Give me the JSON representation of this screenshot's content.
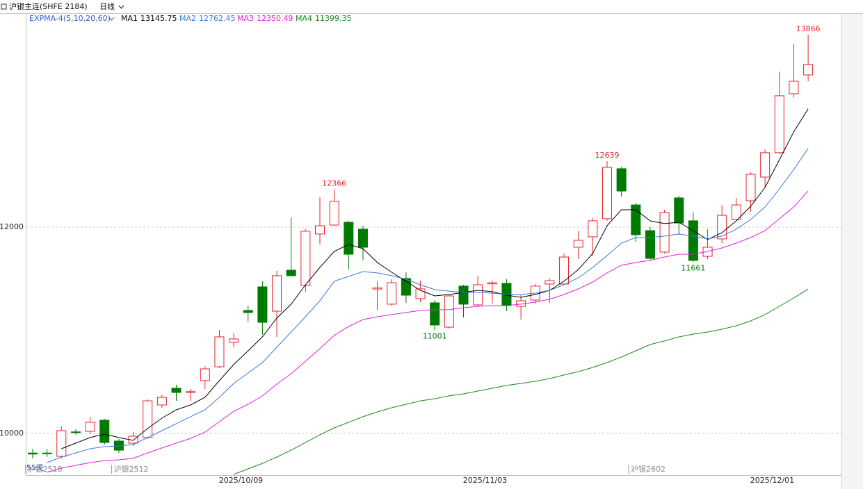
{
  "chart_data": {
    "type": "candlestick",
    "title": "沪银主连(SHFE 2184)",
    "period": "日线",
    "indicator": "EXPMA-4(5,10,20,60)",
    "days_label": "55天",
    "up_color": "#e8232a",
    "down_color": "#007a00",
    "categories": [
      null,
      null,
      null,
      null,
      null,
      null,
      null,
      null,
      null,
      null,
      null,
      null,
      null,
      null,
      null,
      "2025/10/09",
      null,
      null,
      null,
      null,
      null,
      null,
      null,
      null,
      null,
      null,
      null,
      null,
      null,
      null,
      null,
      null,
      "2025/11/03",
      null,
      null,
      null,
      null,
      null,
      null,
      null,
      null,
      null,
      null,
      null,
      null,
      null,
      null,
      null,
      null,
      null,
      null,
      null,
      "2025/12/01",
      null,
      null
    ],
    "contracts": [
      "沪银2510",
      null,
      null,
      null,
      null,
      null,
      "沪银2512",
      null,
      null,
      null,
      null,
      null,
      null,
      null,
      null,
      null,
      null,
      null,
      null,
      null,
      null,
      null,
      null,
      null,
      null,
      null,
      null,
      null,
      null,
      null,
      null,
      null,
      null,
      null,
      null,
      null,
      null,
      null,
      null,
      null,
      null,
      null,
      "沪银2602",
      null,
      null,
      null,
      null,
      null,
      null,
      null,
      null,
      null,
      null,
      null,
      null
    ],
    "open": [
      9810,
      9810,
      9778,
      10015,
      10020,
      10128,
      9926,
      9906,
      9960,
      10276,
      10438,
      10400,
      10512,
      10646,
      10882,
      11192,
      11421,
      11185,
      11582,
      11434,
      11933,
      12020,
      12047,
      11980,
      11400,
      11253,
      11502,
      11306,
      11266,
      11030,
      11428,
      11246,
      11450,
      11455,
      11232,
      11293,
      11448,
      11448,
      11805,
      11906,
      12081,
      12566,
      12215,
      11966,
      11758,
      12283,
      12061,
      11717,
      11886,
      12074,
      12256,
      12485,
      12721,
      13293,
      13475
    ],
    "close": [
      9800,
      9805,
      10027,
      10010,
      10108,
      9912,
      9838,
      9973,
      10316,
      10350,
      10397,
      10405,
      10626,
      10936,
      10916,
      11172,
      11077,
      11529,
      11529,
      11960,
      12013,
      12249,
      11737,
      11805,
      11410,
      11461,
      11340,
      11401,
      11051,
      11333,
      11253,
      11441,
      11460,
      11239,
      11286,
      11428,
      11481,
      11710,
      11872,
      12061,
      12579,
      12350,
      11926,
      11697,
      12141,
      12040,
      11677,
      11805,
      12114,
      12215,
      12512,
      12721,
      13273,
      13414,
      13576
    ],
    "high": [
      9852,
      9850,
      10067,
      10040,
      10162,
      10141,
      9946,
      10013,
      10330,
      10377,
      10471,
      10431,
      10653,
      11003,
      10970,
      11239,
      11475,
      11576,
      12094,
      11980,
      12289,
      12366,
      12061,
      12013,
      11475,
      11495,
      11562,
      11482,
      11293,
      11347,
      11441,
      11529,
      11482,
      11495,
      11340,
      11448,
      11502,
      11744,
      11960,
      12087,
      12639,
      12586,
      12236,
      12000,
      12168,
      12303,
      12141,
      11980,
      12215,
      12283,
      12532,
      12754,
      13508,
      13778,
      13866
    ],
    "low": [
      9758,
      9770,
      9758,
      9990,
      9993,
      9892,
      9811,
      9879,
      9946,
      10249,
      10316,
      10316,
      10431,
      10633,
      10835,
      11084,
      10956,
      10936,
      11522,
      11374,
      11832,
      12013,
      11589,
      11677,
      11199,
      11239,
      11266,
      11273,
      11001,
      11017,
      11125,
      11226,
      11259,
      11185,
      11104,
      11259,
      11266,
      11441,
      11690,
      11724,
      12061,
      12296,
      11859,
      11677,
      11744,
      11926,
      11661,
      11690,
      11845,
      12061,
      12148,
      12384,
      12707,
      13259,
      13414
    ],
    "high_labels": [
      null,
      null,
      null,
      null,
      null,
      null,
      null,
      null,
      null,
      null,
      null,
      null,
      null,
      null,
      null,
      null,
      null,
      null,
      null,
      null,
      null,
      "12366",
      null,
      null,
      null,
      null,
      null,
      null,
      null,
      null,
      null,
      null,
      null,
      null,
      null,
      null,
      null,
      null,
      null,
      null,
      "12639",
      null,
      null,
      null,
      null,
      null,
      null,
      null,
      null,
      null,
      null,
      null,
      null,
      null,
      "13866"
    ],
    "low_labels": [
      null,
      null,
      null,
      null,
      null,
      null,
      null,
      null,
      null,
      null,
      null,
      null,
      null,
      null,
      null,
      null,
      null,
      null,
      null,
      null,
      null,
      null,
      null,
      null,
      null,
      null,
      null,
      null,
      "11001",
      null,
      null,
      null,
      null,
      null,
      null,
      null,
      null,
      null,
      null,
      null,
      null,
      null,
      null,
      null,
      null,
      null,
      "11661",
      null,
      null,
      null,
      null,
      null,
      null,
      null,
      null
    ],
    "series": [
      {
        "name": "MA1",
        "color": "#000000",
        "values": [
          null,
          null,
          9852,
          9906,
          9960,
          9993,
          9960,
          9933,
          10047,
          10148,
          10229,
          10276,
          10350,
          10512,
          10667,
          10801,
          10936,
          11118,
          11253,
          11441,
          11609,
          11764,
          11832,
          11791,
          11657,
          11562,
          11475,
          11387,
          11333,
          11347,
          11367,
          11387,
          11374,
          11340,
          11320,
          11347,
          11387,
          11475,
          11589,
          11744,
          12013,
          12168,
          12168,
          12061,
          12034,
          12047,
          11966,
          11879,
          11946,
          12061,
          12202,
          12384,
          12653,
          12923,
          13145.75
        ]
      },
      {
        "name": "MA2",
        "color": "#3a78d8",
        "values": [
          null,
          9717,
          9771,
          9811,
          9852,
          9872,
          9879,
          9892,
          9960,
          10027,
          10094,
          10162,
          10229,
          10350,
          10485,
          10586,
          10687,
          10835,
          10983,
          11131,
          11286,
          11475,
          11522,
          11569,
          11556,
          11529,
          11495,
          11441,
          11394,
          11380,
          11367,
          11367,
          11360,
          11347,
          11347,
          11360,
          11387,
          11441,
          11508,
          11609,
          11724,
          11845,
          11899,
          11899,
          11913,
          11933,
          11913,
          11886,
          11913,
          11980,
          12074,
          12195,
          12370,
          12559,
          12762.45
        ]
      },
      {
        "name": "MA3",
        "color": "#e020e0",
        "values": [
          null,
          9623,
          9663,
          9690,
          9717,
          9737,
          9744,
          9758,
          9811,
          9859,
          9906,
          9953,
          10013,
          10114,
          10215,
          10283,
          10364,
          10478,
          10579,
          10700,
          10822,
          10950,
          11037,
          11104,
          11131,
          11152,
          11172,
          11192,
          11199,
          11199,
          11219,
          11232,
          11239,
          11239,
          11253,
          11273,
          11300,
          11347,
          11401,
          11468,
          11556,
          11630,
          11657,
          11677,
          11710,
          11737,
          11737,
          11764,
          11798,
          11845,
          11899,
          11966,
          12081,
          12195,
          12350.49
        ]
      },
      {
        "name": "MA4",
        "color": "#1a8a1a",
        "values": [
          null,
          null,
          null,
          null,
          null,
          null,
          null,
          null,
          null,
          null,
          null,
          null,
          null,
          null,
          9603,
          9657,
          9710,
          9771,
          9838,
          9912,
          9987,
          10054,
          10108,
          10162,
          10209,
          10249,
          10283,
          10316,
          10337,
          10364,
          10384,
          10411,
          10438,
          10465,
          10485,
          10505,
          10532,
          10566,
          10599,
          10640,
          10687,
          10741,
          10801,
          10862,
          10896,
          10936,
          10963,
          10983,
          11010,
          11044,
          11091,
          11152,
          11232,
          11313,
          11399.35
        ]
      }
    ],
    "ylim": [
      9596,
      14067
    ],
    "yticks": [
      10000,
      12000
    ],
    "grid": true
  }
}
